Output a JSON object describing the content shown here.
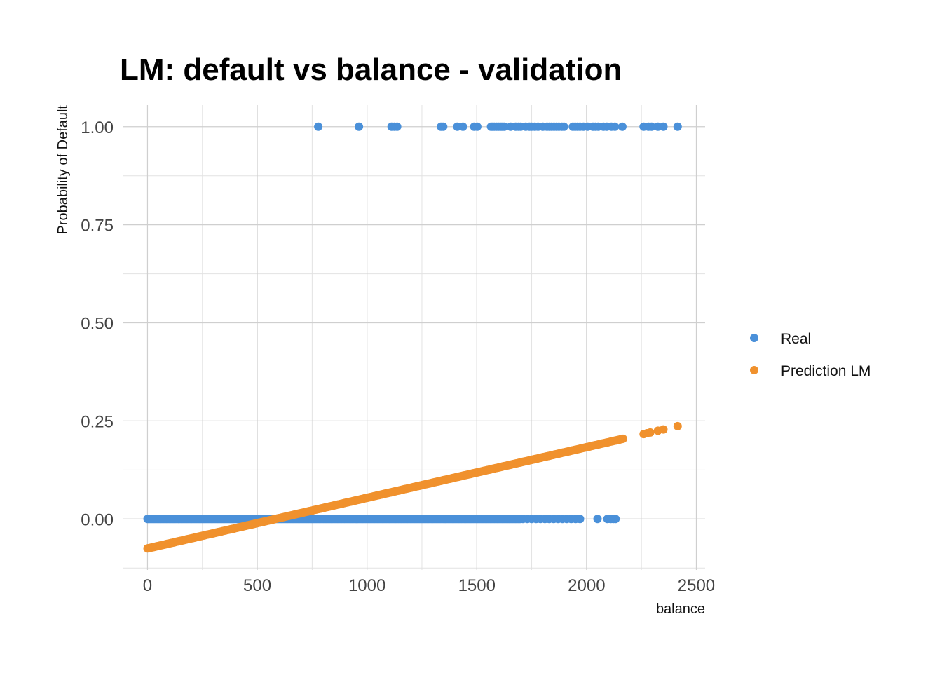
{
  "chart_data": {
    "type": "scatter",
    "title": "LM: default vs balance - validation",
    "xlabel": "balance",
    "ylabel": "Probability of Default",
    "xlim": [
      -110,
      2540
    ],
    "ylim": [
      -0.13,
      1.055
    ],
    "x_ticks": [
      0,
      500,
      1000,
      1500,
      2000,
      2500
    ],
    "x_tick_labels": [
      "0",
      "500",
      "1000",
      "1500",
      "2000",
      "2500"
    ],
    "y_ticks": [
      0.0,
      0.25,
      0.5,
      0.75,
      1.0
    ],
    "y_tick_labels": [
      "0.00",
      "0.25",
      "0.50",
      "0.75",
      "1.00"
    ],
    "grid": true,
    "legend_position": "right",
    "series": [
      {
        "name": "Real",
        "color": "#4a90d9",
        "y": 1.0,
        "x": [
          778,
          963,
          1112,
          1125,
          1137,
          1337,
          1347,
          1411,
          1437,
          1488,
          1502,
          1565,
          1572,
          1580,
          1590,
          1600,
          1610,
          1617,
          1625,
          1654,
          1677,
          1690,
          1700,
          1723,
          1740,
          1749,
          1764,
          1779,
          1801,
          1820,
          1831,
          1841,
          1852,
          1863,
          1874,
          1887,
          1897,
          1938,
          1948,
          1959,
          1970,
          1986,
          2005,
          2029,
          2041,
          2053,
          2077,
          2092,
          2113,
          2129,
          2163,
          2260,
          2282,
          2296,
          2325,
          2350,
          2415
        ]
      },
      {
        "name": "Real",
        "color": "#4a90d9",
        "y": 0.0,
        "x_dense_range": [
          0,
          1700
        ],
        "x": [
          1710,
          1730,
          1750,
          1770,
          1790,
          1810,
          1830,
          1850,
          1870,
          1890,
          1910,
          1930,
          1950,
          1970,
          2050,
          2095,
          2110,
          2122,
          2132
        ]
      },
      {
        "name": "Prediction LM",
        "color": "#f0912d",
        "intercept": -0.0752,
        "slope": 0.0001291,
        "x_dense_range": [
          0,
          2170
        ],
        "x": [
          2260,
          2275,
          2290,
          2325,
          2350,
          2415
        ]
      }
    ]
  }
}
